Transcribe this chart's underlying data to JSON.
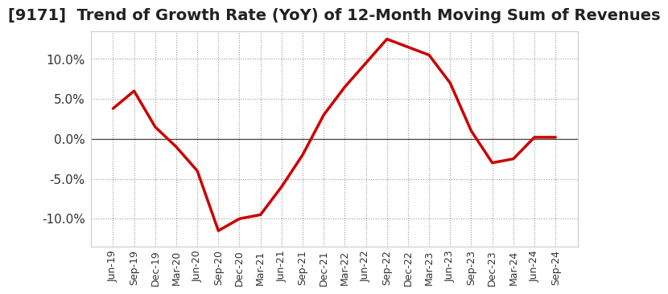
{
  "title": "[9171]  Trend of Growth Rate (YoY) of 12-Month Moving Sum of Revenues",
  "title_fontsize": 14,
  "line_color": "#cc0000",
  "line_width": 2.5,
  "background_color": "#ffffff",
  "plot_bg_color": "#ffffff",
  "grid_color": "#999999",
  "ylim": [
    -0.135,
    0.135
  ],
  "yticks": [
    -0.1,
    -0.05,
    0.0,
    0.05,
    0.1
  ],
  "x_labels": [
    "Jun-19",
    "Sep-19",
    "Dec-19",
    "Mar-20",
    "Jun-20",
    "Sep-20",
    "Dec-20",
    "Mar-21",
    "Jun-21",
    "Sep-21",
    "Dec-21",
    "Mar-22",
    "Jun-22",
    "Sep-22",
    "Dec-22",
    "Mar-23",
    "Jun-23",
    "Sep-23",
    "Dec-23",
    "Mar-24",
    "Jun-24",
    "Sep-24"
  ],
  "y_values": [
    0.038,
    0.06,
    0.015,
    -0.01,
    -0.04,
    -0.115,
    -0.1,
    -0.095,
    -0.06,
    -0.02,
    0.03,
    0.065,
    0.095,
    0.125,
    0.115,
    0.105,
    0.07,
    0.01,
    -0.03,
    -0.025,
    0.002,
    0.002
  ],
  "ylabel_fontsize": 11,
  "xlabel_fontsize": 9
}
